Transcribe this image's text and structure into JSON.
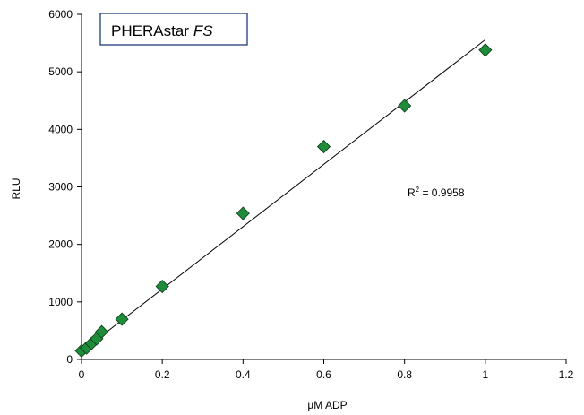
{
  "chart_data": {
    "type": "scatter",
    "brand_label": {
      "name": "PHERAstar",
      "model": "FS"
    },
    "xlabel": "µM ADP",
    "ylabel": "RLU",
    "xlim": [
      0,
      1.2
    ],
    "ylim": [
      0,
      6000
    ],
    "x_ticks": [
      0,
      0.2,
      0.4,
      0.6,
      0.8,
      1.0,
      1.2
    ],
    "x_tick_labels": [
      "0",
      "0.2",
      "0.4",
      "0.6",
      "0.8",
      "1",
      "1.2"
    ],
    "y_ticks": [
      0,
      1000,
      2000,
      3000,
      4000,
      5000,
      6000
    ],
    "y_tick_labels": [
      "0",
      "1000",
      "2000",
      "3000",
      "4000",
      "5000",
      "6000"
    ],
    "grid": false,
    "series": [
      {
        "marker": "diamond",
        "color": "#1e8c3a",
        "points": [
          {
            "x": 0.0,
            "y": 150
          },
          {
            "x": 0.0125,
            "y": 200
          },
          {
            "x": 0.025,
            "y": 280
          },
          {
            "x": 0.0375,
            "y": 360
          },
          {
            "x": 0.05,
            "y": 480
          },
          {
            "x": 0.1,
            "y": 700
          },
          {
            "x": 0.2,
            "y": 1270
          },
          {
            "x": 0.4,
            "y": 2540
          },
          {
            "x": 0.6,
            "y": 3700
          },
          {
            "x": 0.8,
            "y": 4410
          },
          {
            "x": 1.0,
            "y": 5380
          }
        ]
      }
    ],
    "trendline": {
      "type": "linear",
      "x_from": 0,
      "x_to": 1.0,
      "y_from": 140,
      "y_to": 5560,
      "color": "#000000"
    },
    "annotations": {
      "r2_prefix": "R",
      "r2_sup": "2",
      "r2_value": " = 0.9958"
    }
  }
}
